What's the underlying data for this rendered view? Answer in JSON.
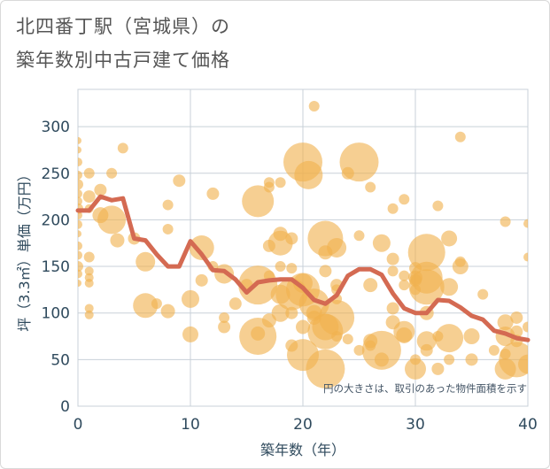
{
  "title_line1": "北四番丁駅（宮城県）の",
  "title_line2": "築年数別中古戸建て価格",
  "chart_data": {
    "type": "scatter",
    "xlabel": "築年数（年）",
    "ylabel": "坪（3.3㎡）単価（万円）",
    "xlim": [
      0,
      40
    ],
    "ylim": [
      0,
      340
    ],
    "xticks": [
      0,
      10,
      20,
      30,
      40
    ],
    "yticks": [
      0,
      50,
      100,
      150,
      200,
      250,
      300
    ],
    "grid": true,
    "annotation": "円の大きさは、取引のあった物件面積を示す",
    "colors": {
      "bubble": "#f0b14f",
      "line": "#d46a52"
    },
    "bubbles": [
      {
        "x": 0,
        "y": 285,
        "s": 4
      },
      {
        "x": 0,
        "y": 275,
        "s": 4
      },
      {
        "x": 0,
        "y": 262,
        "s": 5
      },
      {
        "x": 0,
        "y": 248,
        "s": 5
      },
      {
        "x": 0,
        "y": 238,
        "s": 6
      },
      {
        "x": 0,
        "y": 228,
        "s": 5
      },
      {
        "x": 0,
        "y": 220,
        "s": 5
      },
      {
        "x": 0,
        "y": 212,
        "s": 6
      },
      {
        "x": 0,
        "y": 205,
        "s": 5
      },
      {
        "x": 0,
        "y": 195,
        "s": 5
      },
      {
        "x": 0,
        "y": 185,
        "s": 4
      },
      {
        "x": 0,
        "y": 172,
        "s": 5
      },
      {
        "x": 0,
        "y": 162,
        "s": 5
      },
      {
        "x": 0,
        "y": 150,
        "s": 6
      },
      {
        "x": 0,
        "y": 142,
        "s": 5
      },
      {
        "x": 0,
        "y": 132,
        "s": 4
      },
      {
        "x": 1,
        "y": 250,
        "s": 6
      },
      {
        "x": 1,
        "y": 225,
        "s": 7
      },
      {
        "x": 1,
        "y": 212,
        "s": 5
      },
      {
        "x": 1,
        "y": 160,
        "s": 6
      },
      {
        "x": 1,
        "y": 145,
        "s": 5
      },
      {
        "x": 1,
        "y": 138,
        "s": 5
      },
      {
        "x": 1,
        "y": 132,
        "s": 5
      },
      {
        "x": 1,
        "y": 105,
        "s": 5
      },
      {
        "x": 1,
        "y": 98,
        "s": 5
      },
      {
        "x": 2,
        "y": 232,
        "s": 7
      },
      {
        "x": 2,
        "y": 205,
        "s": 9
      },
      {
        "x": 3,
        "y": 250,
        "s": 6
      },
      {
        "x": 3,
        "y": 200,
        "s": 16
      },
      {
        "x": 3.5,
        "y": 178,
        "s": 8
      },
      {
        "x": 4,
        "y": 277,
        "s": 6
      },
      {
        "x": 5,
        "y": 180,
        "s": 7
      },
      {
        "x": 6,
        "y": 155,
        "s": 11
      },
      {
        "x": 6,
        "y": 108,
        "s": 14
      },
      {
        "x": 7,
        "y": 110,
        "s": 6
      },
      {
        "x": 8,
        "y": 216,
        "s": 6
      },
      {
        "x": 8,
        "y": 190,
        "s": 6
      },
      {
        "x": 8,
        "y": 102,
        "s": 8
      },
      {
        "x": 9,
        "y": 242,
        "s": 7
      },
      {
        "x": 10,
        "y": 115,
        "s": 10
      },
      {
        "x": 10,
        "y": 77,
        "s": 9
      },
      {
        "x": 11,
        "y": 170,
        "s": 14
      },
      {
        "x": 11,
        "y": 135,
        "s": 7
      },
      {
        "x": 12,
        "y": 228,
        "s": 7
      },
      {
        "x": 12,
        "y": 150,
        "s": 6
      },
      {
        "x": 13,
        "y": 142,
        "s": 11
      },
      {
        "x": 13,
        "y": 95,
        "s": 6
      },
      {
        "x": 13,
        "y": 85,
        "s": 7
      },
      {
        "x": 14,
        "y": 110,
        "s": 7
      },
      {
        "x": 15,
        "y": 130,
        "s": 7
      },
      {
        "x": 16,
        "y": 220,
        "s": 18
      },
      {
        "x": 16,
        "y": 130,
        "s": 22
      },
      {
        "x": 16,
        "y": 75,
        "s": 21
      },
      {
        "x": 16,
        "y": 78,
        "s": 8
      },
      {
        "x": 17,
        "y": 240,
        "s": 6
      },
      {
        "x": 17,
        "y": 235,
        "s": 6
      },
      {
        "x": 17,
        "y": 172,
        "s": 7
      },
      {
        "x": 17,
        "y": 140,
        "s": 6
      },
      {
        "x": 17,
        "y": 92,
        "s": 8
      },
      {
        "x": 18,
        "y": 240,
        "s": 6
      },
      {
        "x": 18,
        "y": 185,
        "s": 8
      },
      {
        "x": 18,
        "y": 175,
        "s": 14
      },
      {
        "x": 18,
        "y": 150,
        "s": 6
      },
      {
        "x": 18,
        "y": 120,
        "s": 11
      },
      {
        "x": 18,
        "y": 100,
        "s": 10
      },
      {
        "x": 19,
        "y": 180,
        "s": 7
      },
      {
        "x": 19,
        "y": 148,
        "s": 6
      },
      {
        "x": 19,
        "y": 120,
        "s": 18
      },
      {
        "x": 19,
        "y": 100,
        "s": 7
      },
      {
        "x": 19,
        "y": 65,
        "s": 7
      },
      {
        "x": 20,
        "y": 262,
        "s": 22
      },
      {
        "x": 20,
        "y": 132,
        "s": 11
      },
      {
        "x": 20,
        "y": 125,
        "s": 19
      },
      {
        "x": 20,
        "y": 85,
        "s": 8
      },
      {
        "x": 20,
        "y": 55,
        "s": 18
      },
      {
        "x": 20.5,
        "y": 248,
        "s": 16
      },
      {
        "x": 21,
        "y": 322,
        "s": 6
      },
      {
        "x": 21,
        "y": 110,
        "s": 17
      },
      {
        "x": 21,
        "y": 100,
        "s": 9
      },
      {
        "x": 21,
        "y": 95,
        "s": 8
      },
      {
        "x": 22,
        "y": 180,
        "s": 20
      },
      {
        "x": 22,
        "y": 165,
        "s": 8
      },
      {
        "x": 22,
        "y": 145,
        "s": 7
      },
      {
        "x": 22,
        "y": 85,
        "s": 15
      },
      {
        "x": 22,
        "y": 80,
        "s": 20
      },
      {
        "x": 22,
        "y": 40,
        "s": 22
      },
      {
        "x": 23,
        "y": 170,
        "s": 11
      },
      {
        "x": 23,
        "y": 130,
        "s": 7
      },
      {
        "x": 23,
        "y": 125,
        "s": 6
      },
      {
        "x": 23,
        "y": 115,
        "s": 6
      },
      {
        "x": 23,
        "y": 95,
        "s": 20
      },
      {
        "x": 23,
        "y": 75,
        "s": 6
      },
      {
        "x": 24,
        "y": 250,
        "s": 7
      },
      {
        "x": 24,
        "y": 72,
        "s": 6
      },
      {
        "x": 25,
        "y": 262,
        "s": 22
      },
      {
        "x": 25,
        "y": 183,
        "s": 6
      },
      {
        "x": 25,
        "y": 60,
        "s": 6
      },
      {
        "x": 26,
        "y": 235,
        "s": 6
      },
      {
        "x": 26,
        "y": 130,
        "s": 8
      },
      {
        "x": 26,
        "y": 70,
        "s": 8
      },
      {
        "x": 26,
        "y": 65,
        "s": 6
      },
      {
        "x": 27,
        "y": 175,
        "s": 10
      },
      {
        "x": 27,
        "y": 60,
        "s": 22
      },
      {
        "x": 27,
        "y": 50,
        "s": 8
      },
      {
        "x": 28,
        "y": 212,
        "s": 6
      },
      {
        "x": 28,
        "y": 158,
        "s": 7
      },
      {
        "x": 28,
        "y": 145,
        "s": 6
      },
      {
        "x": 28,
        "y": 105,
        "s": 7
      },
      {
        "x": 28,
        "y": 90,
        "s": 8
      },
      {
        "x": 29,
        "y": 222,
        "s": 6
      },
      {
        "x": 29,
        "y": 140,
        "s": 6
      },
      {
        "x": 29,
        "y": 130,
        "s": 6
      },
      {
        "x": 29,
        "y": 80,
        "s": 12
      },
      {
        "x": 29,
        "y": 76,
        "s": 9
      },
      {
        "x": 30,
        "y": 148,
        "s": 7
      },
      {
        "x": 30,
        "y": 138,
        "s": 8
      },
      {
        "x": 30,
        "y": 135,
        "s": 7
      },
      {
        "x": 30,
        "y": 125,
        "s": 6
      },
      {
        "x": 30,
        "y": 50,
        "s": 6
      },
      {
        "x": 30,
        "y": 40,
        "s": 12
      },
      {
        "x": 31,
        "y": 165,
        "s": 21
      },
      {
        "x": 31,
        "y": 138,
        "s": 18
      },
      {
        "x": 31,
        "y": 128,
        "s": 20
      },
      {
        "x": 31,
        "y": 100,
        "s": 8
      },
      {
        "x": 31,
        "y": 70,
        "s": 11
      },
      {
        "x": 31,
        "y": 60,
        "s": 7
      },
      {
        "x": 32,
        "y": 215,
        "s": 6
      },
      {
        "x": 32,
        "y": 75,
        "s": 6
      },
      {
        "x": 32,
        "y": 40,
        "s": 7
      },
      {
        "x": 33,
        "y": 180,
        "s": 9
      },
      {
        "x": 33,
        "y": 128,
        "s": 10
      },
      {
        "x": 33,
        "y": 73,
        "s": 16
      },
      {
        "x": 33,
        "y": 50,
        "s": 6
      },
      {
        "x": 34,
        "y": 289,
        "s": 6
      },
      {
        "x": 34,
        "y": 155,
        "s": 6
      },
      {
        "x": 34,
        "y": 150,
        "s": 9
      },
      {
        "x": 35,
        "y": 75,
        "s": 9
      },
      {
        "x": 35,
        "y": 50,
        "s": 7
      },
      {
        "x": 36,
        "y": 120,
        "s": 6
      },
      {
        "x": 37,
        "y": 60,
        "s": 6
      },
      {
        "x": 38,
        "y": 198,
        "s": 6
      },
      {
        "x": 38,
        "y": 90,
        "s": 9
      },
      {
        "x": 38,
        "y": 75,
        "s": 11
      },
      {
        "x": 38,
        "y": 56,
        "s": 6
      },
      {
        "x": 38,
        "y": 40,
        "s": 12
      },
      {
        "x": 39,
        "y": 95,
        "s": 7
      },
      {
        "x": 39,
        "y": 80,
        "s": 7
      },
      {
        "x": 39,
        "y": 70,
        "s": 7
      },
      {
        "x": 39,
        "y": 50,
        "s": 20
      },
      {
        "x": 40,
        "y": 196,
        "s": 5
      },
      {
        "x": 40,
        "y": 160,
        "s": 5
      },
      {
        "x": 40,
        "y": 85,
        "s": 6
      },
      {
        "x": 40,
        "y": 45,
        "s": 11
      }
    ],
    "series": [
      {
        "x": [
          0,
          1,
          2,
          3,
          4,
          5,
          6,
          7,
          8,
          9,
          10,
          11,
          12,
          13,
          14,
          15,
          16,
          17,
          18,
          19,
          20,
          21,
          22,
          23,
          24,
          25,
          26,
          27,
          28,
          29,
          30,
          31,
          32,
          33,
          34,
          35,
          36,
          37,
          38,
          39,
          40
        ],
        "values": [
          210,
          210,
          225,
          221,
          223,
          180,
          178,
          163,
          150,
          150,
          177,
          163,
          146,
          145,
          136,
          122,
          133,
          135,
          136,
          136,
          127,
          114,
          110,
          119,
          140,
          147,
          147,
          141,
          121,
          105,
          100,
          100,
          114,
          113,
          106,
          97,
          93,
          81,
          78,
          73,
          71
        ]
      }
    ]
  }
}
